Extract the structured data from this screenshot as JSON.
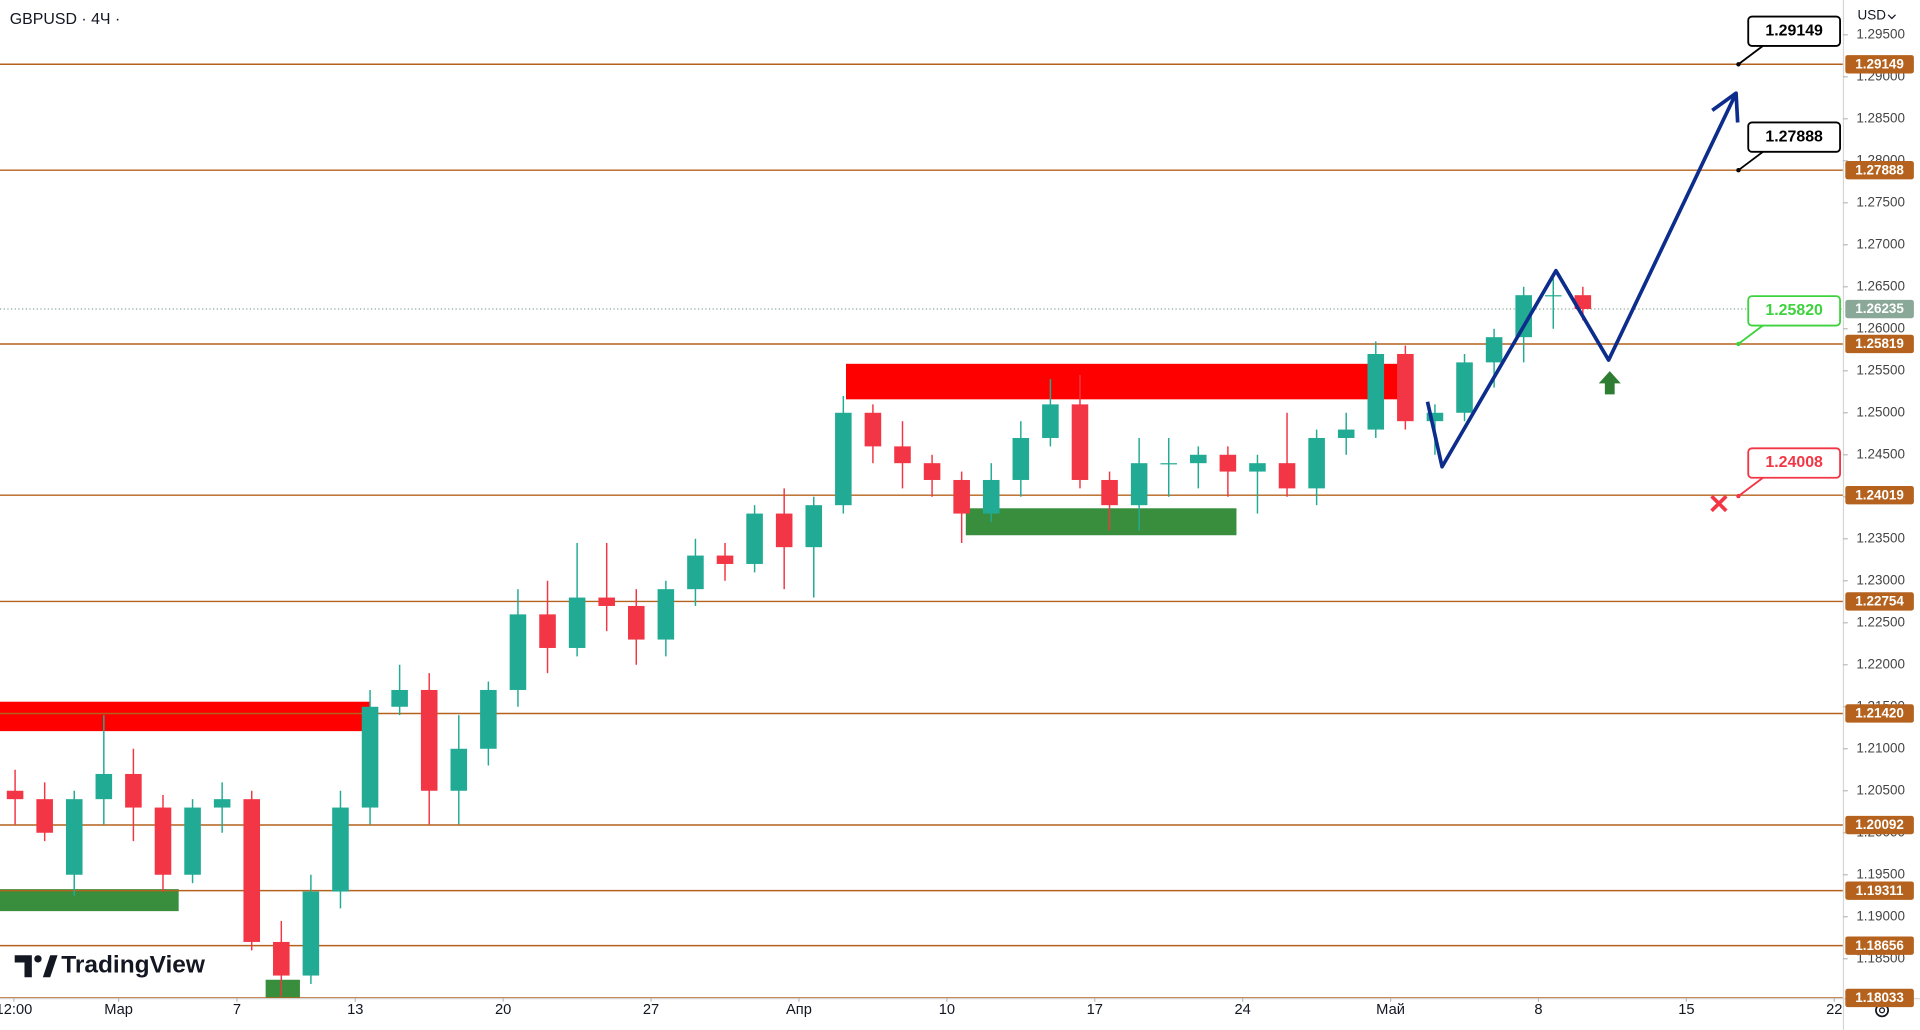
{
  "chart_data": {
    "type": "candlestick",
    "title": "GBPUSD · 4Ч ·",
    "currency": "USD",
    "brand": "TradingView",
    "up_color": "#22ab94",
    "down_color": "#f23645",
    "x": [
      -4,
      -3,
      -2,
      -1,
      0,
      1,
      2,
      3,
      4,
      5,
      6,
      7,
      8,
      9,
      10,
      11,
      12,
      13,
      14,
      15,
      16,
      17,
      18,
      19,
      20,
      21,
      22,
      23,
      24,
      25,
      26,
      27,
      28,
      29,
      30,
      31,
      32,
      33,
      34,
      35,
      36,
      37,
      38,
      39,
      40,
      41,
      42,
      43,
      44,
      45,
      46,
      47,
      48,
      49
    ],
    "open": [
      1.205,
      1.204,
      1.195,
      1.204,
      1.207,
      1.203,
      1.195,
      1.203,
      1.204,
      1.187,
      1.183,
      1.193,
      1.203,
      1.215,
      1.217,
      1.205,
      1.21,
      1.217,
      1.226,
      1.222,
      1.228,
      1.227,
      1.223,
      1.229,
      1.233,
      1.232,
      1.238,
      1.234,
      1.239,
      1.25,
      1.246,
      1.244,
      1.242,
      1.238,
      1.242,
      1.247,
      1.251,
      1.242,
      1.239,
      1.244,
      1.244,
      1.245,
      1.243,
      1.244,
      1.241,
      1.247,
      1.248,
      1.257,
      1.249,
      1.25,
      1.256,
      1.259,
      1.264,
      1.264
    ],
    "high": [
      1.2075,
      1.206,
      1.205,
      1.214,
      1.21,
      1.2045,
      1.204,
      1.206,
      1.205,
      1.1895,
      1.195,
      1.205,
      1.217,
      1.22,
      1.219,
      1.214,
      1.218,
      1.229,
      1.23,
      1.2345,
      1.2345,
      1.229,
      1.23,
      1.235,
      1.2345,
      1.239,
      1.241,
      1.24,
      1.252,
      1.251,
      1.249,
      1.245,
      1.243,
      1.244,
      1.249,
      1.254,
      1.2545,
      1.243,
      1.247,
      1.247,
      1.246,
      1.246,
      1.245,
      1.25,
      1.248,
      1.25,
      1.2585,
      1.258,
      1.251,
      1.257,
      1.26,
      1.265,
      1.266,
      1.265
    ],
    "low": [
      1.201,
      1.199,
      1.1925,
      1.201,
      1.199,
      1.193,
      1.194,
      1.2,
      1.186,
      1.1805,
      1.182,
      1.191,
      1.201,
      1.214,
      1.201,
      1.201,
      1.208,
      1.215,
      1.219,
      1.221,
      1.224,
      1.22,
      1.221,
      1.227,
      1.23,
      1.231,
      1.229,
      1.228,
      1.238,
      1.244,
      1.241,
      1.24,
      1.2345,
      1.237,
      1.24,
      1.246,
      1.241,
      1.236,
      1.236,
      1.24,
      1.241,
      1.24,
      1.238,
      1.24,
      1.239,
      1.245,
      1.247,
      1.248,
      1.245,
      1.249,
      1.253,
      1.256,
      1.26,
      1.261
    ],
    "close": [
      1.204,
      1.2,
      1.204,
      1.207,
      1.203,
      1.195,
      1.203,
      1.204,
      1.187,
      1.183,
      1.193,
      1.203,
      1.215,
      1.217,
      1.205,
      1.21,
      1.217,
      1.226,
      1.222,
      1.228,
      1.227,
      1.223,
      1.229,
      1.233,
      1.232,
      1.238,
      1.234,
      1.239,
      1.25,
      1.246,
      1.244,
      1.242,
      1.238,
      1.242,
      1.247,
      1.251,
      1.242,
      1.239,
      1.244,
      1.244,
      1.245,
      1.243,
      1.244,
      1.241,
      1.247,
      1.248,
      1.257,
      1.249,
      1.25,
      1.256,
      1.259,
      1.264,
      1.264,
      1.26235
    ],
    "xlim": [
      -4.01,
      58.29
    ],
    "ylim": [
      1.18032,
      1.29913
    ],
    "xticks": [
      {
        "value": -3.54,
        "label": "12:00"
      },
      {
        "value": 0,
        "label": "Мар"
      },
      {
        "value": 4,
        "label": "7"
      },
      {
        "value": 8,
        "label": "13"
      },
      {
        "value": 13,
        "label": "20"
      },
      {
        "value": 18,
        "label": "27"
      },
      {
        "value": 23,
        "label": "Апр"
      },
      {
        "value": 28,
        "label": "10"
      },
      {
        "value": 33,
        "label": "17"
      },
      {
        "value": 38,
        "label": "24"
      },
      {
        "value": 43,
        "label": "Май"
      },
      {
        "value": 48,
        "label": "8"
      },
      {
        "value": 53,
        "label": "15"
      },
      {
        "value": 58,
        "label": "22"
      }
    ],
    "yticks": [
      {
        "value": 1.295,
        "label": "1.29500"
      },
      {
        "value": 1.29,
        "label": "1.29000"
      },
      {
        "value": 1.285,
        "label": "1.28500"
      },
      {
        "value": 1.28,
        "label": "1.28000"
      },
      {
        "value": 1.275,
        "label": "1.27500"
      },
      {
        "value": 1.27,
        "label": "1.27000"
      },
      {
        "value": 1.265,
        "label": "1.26500"
      },
      {
        "value": 1.26,
        "label": "1.26000"
      },
      {
        "value": 1.255,
        "label": "1.25500"
      },
      {
        "value": 1.25,
        "label": "1.25000"
      },
      {
        "value": 1.245,
        "label": "1.24500"
      },
      {
        "value": 1.24,
        "label": "1.24000"
      },
      {
        "value": 1.235,
        "label": "1.23500"
      },
      {
        "value": 1.23,
        "label": "1.23000"
      },
      {
        "value": 1.225,
        "label": "1.22500"
      },
      {
        "value": 1.22,
        "label": "1.22000"
      },
      {
        "value": 1.215,
        "label": "1.21500"
      },
      {
        "value": 1.21,
        "label": "1.21000"
      },
      {
        "value": 1.205,
        "label": "1.20500"
      },
      {
        "value": 1.2,
        "label": "1.20000"
      },
      {
        "value": 1.195,
        "label": "1.19500"
      },
      {
        "value": 1.19,
        "label": "1.19000"
      },
      {
        "value": 1.185,
        "label": "1.18500"
      }
    ],
    "level_color": "#b4621d",
    "levels": [
      1.29149,
      1.27888,
      1.25819,
      1.24019,
      1.22754,
      {
        "value": 1.2142,
        "label": "1.21420"
      },
      1.20092,
      1.19311,
      1.18656,
      1.18033
    ],
    "last_price": 1.26235,
    "last_price_color": "#8aa898",
    "zones": [
      {
        "x": [
          -4.01,
          8.49
        ],
        "y": [
          1.2121,
          1.2156
        ],
        "color": "#ff0000"
      },
      {
        "x": [
          24.59,
          43.46
        ],
        "y": [
          1.2516,
          1.25583
        ],
        "color": "#ff0000"
      },
      {
        "x": [
          -4.01,
          2.03
        ],
        "y": [
          1.19067,
          1.19329
        ],
        "color": "#388e3c"
      },
      {
        "x": [
          28.64,
          37.79
        ],
        "y": [
          1.23542,
          1.23863
        ],
        "color": "#388e3c"
      },
      {
        "x": [
          4.97,
          6.13
        ],
        "y": [
          1.18032,
          1.1825
        ],
        "color": "#388e3c"
      }
    ],
    "projection": {
      "x": [
        44.25,
        44.74,
        48.59,
        50.37,
        54.68
      ],
      "y": [
        1.25131,
        1.24358,
        1.26691,
        1.25627,
        1.28805
      ],
      "color": "#0d2d8c"
    },
    "markers": [
      {
        "x": 50.41,
        "y": 1.2535,
        "shape": "arrow-up",
        "color": "#2e7d32"
      },
      {
        "x": 54.1,
        "y": 1.2392,
        "shape": "cross",
        "color": "#f23645"
      }
    ],
    "callout_x": 54.76,
    "callouts": [
      {
        "price": 1.29149,
        "color": "#000000"
      },
      {
        "price": 1.27888,
        "color": "#000000"
      },
      {
        "price": 1.2582,
        "label": "1.25820",
        "color": "#3ed33e"
      },
      {
        "price": 1.24008,
        "color": "#f23645"
      }
    ]
  }
}
